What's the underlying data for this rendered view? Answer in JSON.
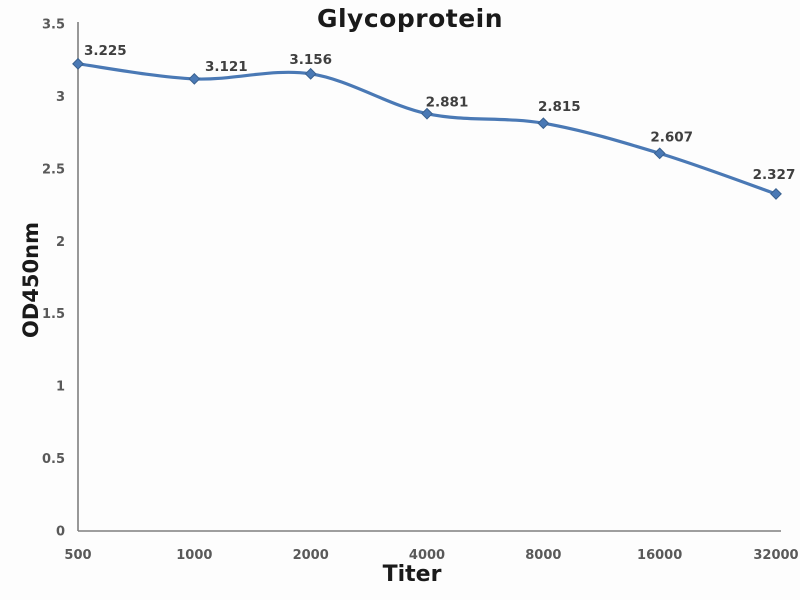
{
  "chart_data": {
    "type": "line",
    "title": "Glycoprotein",
    "xlabel": "Titer",
    "ylabel": "OD450nm",
    "categories": [
      "500",
      "1000",
      "2000",
      "4000",
      "8000",
      "16000",
      "32000"
    ],
    "series": [
      {
        "name": "OD450nm",
        "values": [
          3.225,
          3.121,
          3.156,
          2.881,
          2.815,
          2.607,
          2.327
        ]
      }
    ],
    "data_labels": [
      "3.225",
      "3.121",
      "3.156",
      "2.881",
      "2.815",
      "2.607",
      "2.327"
    ],
    "y_ticks": [
      "0",
      "0.5",
      "1",
      "1.5",
      "2",
      "2.5",
      "3",
      "3.5"
    ],
    "ylim": [
      0,
      3.5
    ],
    "grid": false,
    "legend_position": "none",
    "line_style": "smooth",
    "marker": "diamond",
    "colors": {
      "line": "#4a79b5",
      "marker_fill": "#4a79b5",
      "marker_stroke": "#3a618f",
      "axis": "#7f7f7f",
      "tick_label": "#595959",
      "data_label": "#3f3f3f",
      "title": "#1a1a1a",
      "background": "#fdfdfd"
    }
  }
}
